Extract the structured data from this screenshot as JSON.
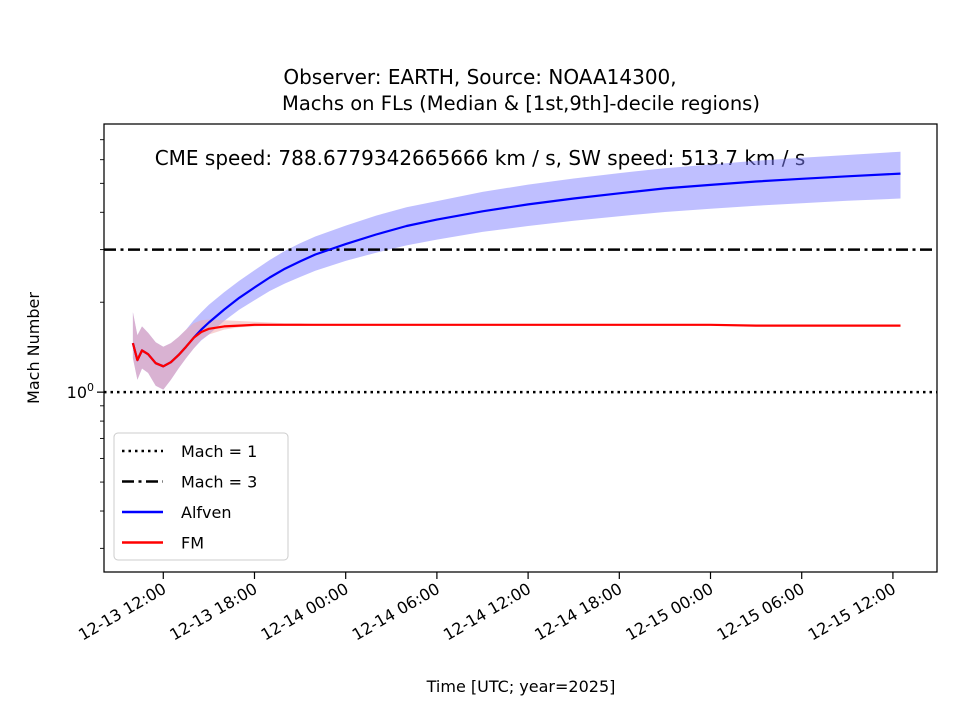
{
  "figure": {
    "suptitle_line1": "Observer: EARTH, Source: NOAA14300,",
    "suptitle_line2": "CME speed: 788.6779342665666 km / s, SW speed: 513.7 km / s"
  },
  "chart_data": {
    "type": "line",
    "title": "Machs on FLs (Median & [1st,9th]-decile regions)",
    "xlabel": "Time [UTC; year=2025]",
    "ylabel": "Mach Number",
    "yscale": "log",
    "ylim": [
      0.25,
      7.9
    ],
    "xlim_hours_from_2025-12-13T00:00": [
      8.1,
      62.9
    ],
    "x_tick_labels": [
      "12-13 12:00",
      "12-13 18:00",
      "12-14 00:00",
      "12-14 06:00",
      "12-14 12:00",
      "12-14 18:00",
      "12-15 00:00",
      "12-15 06:00",
      "12-15 12:00"
    ],
    "x_tick_hours": [
      12,
      18,
      24,
      30,
      36,
      42,
      48,
      54,
      60
    ],
    "y_tick_label": "10^0",
    "y_tick_value": 1,
    "grid": false,
    "legend_position": "lower-left",
    "reference_lines": [
      {
        "name": "Mach = 1",
        "value": 1,
        "style": "dotted",
        "color": "#000000"
      },
      {
        "name": "Mach = 3",
        "value": 3,
        "style": "dashdot",
        "color": "#000000"
      }
    ],
    "series": [
      {
        "name": "Alfven",
        "color": "#0000ff",
        "band_color": "#8080ff",
        "x": [
          10.0,
          10.3,
          10.6,
          11.0,
          11.5,
          12.0,
          12.5,
          13.0,
          13.5,
          14.0,
          14.5,
          15.0,
          16.0,
          17.0,
          18.0,
          19.0,
          20.0,
          21.0,
          22.0,
          24.0,
          26.0,
          28.0,
          30.0,
          33.0,
          36.0,
          39.0,
          42.0,
          45.0,
          48.0,
          51.0,
          54.0,
          57.0,
          60.5
        ],
        "median": [
          1.46,
          1.28,
          1.38,
          1.34,
          1.25,
          1.22,
          1.26,
          1.33,
          1.42,
          1.52,
          1.62,
          1.71,
          1.89,
          2.07,
          2.24,
          2.42,
          2.59,
          2.74,
          2.89,
          3.13,
          3.37,
          3.6,
          3.78,
          4.03,
          4.25,
          4.45,
          4.63,
          4.81,
          4.94,
          5.07,
          5.18,
          5.28,
          5.39
        ],
        "lower": [
          1.3,
          1.1,
          1.2,
          1.16,
          1.05,
          1.02,
          1.1,
          1.2,
          1.3,
          1.4,
          1.49,
          1.56,
          1.73,
          1.89,
          2.03,
          2.18,
          2.31,
          2.43,
          2.55,
          2.75,
          2.93,
          3.1,
          3.24,
          3.44,
          3.6,
          3.75,
          3.88,
          4.01,
          4.11,
          4.21,
          4.29,
          4.37,
          4.45
        ],
        "upper": [
          1.85,
          1.55,
          1.66,
          1.58,
          1.47,
          1.42,
          1.46,
          1.53,
          1.62,
          1.74,
          1.85,
          1.96,
          2.16,
          2.36,
          2.56,
          2.77,
          2.97,
          3.15,
          3.32,
          3.61,
          3.9,
          4.16,
          4.36,
          4.68,
          4.95,
          5.19,
          5.41,
          5.62,
          5.78,
          5.95,
          6.09,
          6.22,
          6.38
        ]
      },
      {
        "name": "FM",
        "color": "#ff0000",
        "band_color": "#f4a6a6",
        "x": [
          10.0,
          10.3,
          10.6,
          11.0,
          11.5,
          12.0,
          12.5,
          13.0,
          13.5,
          14.0,
          14.5,
          15.0,
          16.0,
          17.0,
          18.0,
          19.0,
          20.0,
          21.0,
          22.0,
          24.0,
          26.0,
          28.0,
          30.0,
          33.0,
          36.0,
          39.0,
          42.0,
          45.0,
          48.0,
          51.0,
          54.0,
          57.0,
          60.5
        ],
        "median": [
          1.46,
          1.28,
          1.38,
          1.34,
          1.25,
          1.22,
          1.26,
          1.33,
          1.42,
          1.52,
          1.59,
          1.63,
          1.66,
          1.67,
          1.68,
          1.68,
          1.68,
          1.68,
          1.68,
          1.68,
          1.68,
          1.68,
          1.68,
          1.68,
          1.68,
          1.68,
          1.68,
          1.68,
          1.68,
          1.67,
          1.67,
          1.67,
          1.67
        ],
        "lower": [
          1.3,
          1.1,
          1.2,
          1.16,
          1.05,
          1.02,
          1.1,
          1.2,
          1.3,
          1.4,
          1.5,
          1.56,
          1.62,
          1.65,
          1.66,
          1.67,
          1.67,
          1.67,
          1.67,
          1.67,
          1.67,
          1.67,
          1.67,
          1.67,
          1.67,
          1.67,
          1.67,
          1.67,
          1.67,
          1.66,
          1.66,
          1.66,
          1.66
        ],
        "upper": [
          1.85,
          1.55,
          1.66,
          1.58,
          1.47,
          1.42,
          1.46,
          1.53,
          1.62,
          1.7,
          1.74,
          1.75,
          1.74,
          1.73,
          1.72,
          1.71,
          1.7,
          1.7,
          1.69,
          1.69,
          1.69,
          1.69,
          1.69,
          1.69,
          1.69,
          1.69,
          1.69,
          1.69,
          1.69,
          1.68,
          1.68,
          1.68,
          1.68
        ]
      }
    ]
  }
}
